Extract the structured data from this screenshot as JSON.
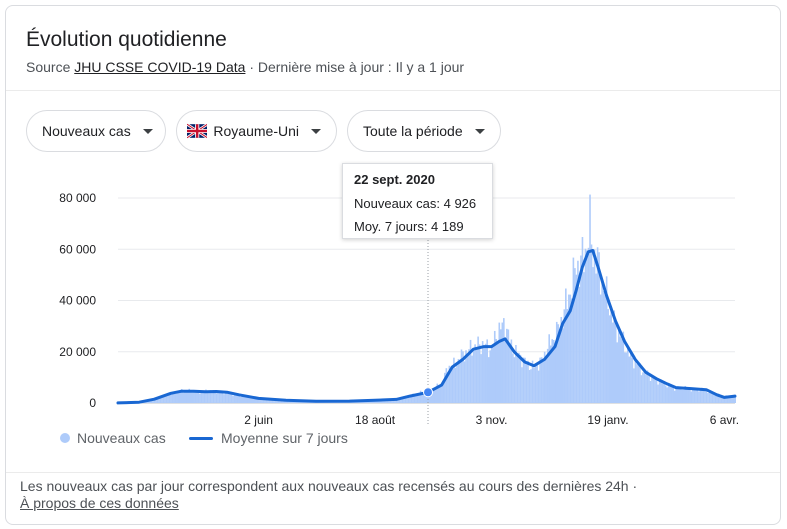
{
  "header": {
    "title": "Évolution quotidienne",
    "source_prefix": "Source",
    "source_link": "JHU CSSE COVID-19 Data",
    "updated": "· Dernière mise à jour : Il y a 1 jour"
  },
  "filters": {
    "metric": "Nouveaux cas",
    "country": "Royaume-Uni",
    "period": "Toute la période"
  },
  "tooltip": {
    "date": "22 sept. 2020",
    "new_cases": "Nouveaux cas: 4 926",
    "avg": "Moy. 7 jours: 4 189"
  },
  "legend": {
    "bars": "Nouveaux cas",
    "line": "Moyenne sur 7 jours"
  },
  "footer": {
    "note": "Les nouveaux cas par jour correspondent aux nouveaux cas recensés au cours des dernières 24h ·",
    "about": "À propos de ces données"
  },
  "colors": {
    "bars": "#aecbfa",
    "line": "#1967d2",
    "grid": "#e8eaed"
  },
  "chart_data": {
    "type": "bar",
    "ylim": [
      0,
      80000
    ],
    "y_ticks": [
      {
        "value": 0,
        "label": "0"
      },
      {
        "value": 20000,
        "label": "20 000"
      },
      {
        "value": 40000,
        "label": "40 000"
      },
      {
        "value": 60000,
        "label": "60 000"
      },
      {
        "value": 80000,
        "label": "80 000"
      }
    ],
    "x_range": [
      "2020-03-01",
      "2021-04-13"
    ],
    "x_ticks": [
      {
        "date": "2020-06-02",
        "label": "2 juin"
      },
      {
        "date": "2020-08-18",
        "label": "18 août"
      },
      {
        "date": "2020-11-03",
        "label": "3 nov."
      },
      {
        "date": "2021-01-19",
        "label": "19 janv."
      },
      {
        "date": "2021-04-06",
        "label": "6 avr."
      }
    ],
    "highlight": {
      "date": "2020-09-22",
      "new_cases": 4926,
      "avg_7d": 4189
    },
    "series": [
      {
        "name": "Nouveaux cas",
        "kind": "bars",
        "points": [
          [
            "2020-03-01",
            30
          ],
          [
            "2020-03-15",
            200
          ],
          [
            "2020-03-25",
            1500
          ],
          [
            "2020-04-05",
            3500
          ],
          [
            "2020-04-12",
            4800
          ],
          [
            "2020-04-25",
            4500
          ],
          [
            "2020-05-05",
            4600
          ],
          [
            "2020-05-20",
            3000
          ],
          [
            "2020-06-02",
            1700
          ],
          [
            "2020-06-20",
            1100
          ],
          [
            "2020-07-10",
            600
          ],
          [
            "2020-08-01",
            750
          ],
          [
            "2020-08-18",
            1050
          ],
          [
            "2020-09-01",
            1500
          ],
          [
            "2020-09-10",
            2800
          ],
          [
            "2020-09-22",
            4926
          ],
          [
            "2020-10-01",
            7000
          ],
          [
            "2020-10-05",
            14000
          ],
          [
            "2020-10-10",
            15000
          ],
          [
            "2020-10-15",
            19000
          ],
          [
            "2020-10-20",
            21000
          ],
          [
            "2020-10-27",
            23000
          ],
          [
            "2020-11-03",
            21000
          ],
          [
            "2020-11-07",
            28000
          ],
          [
            "2020-11-12",
            31000
          ],
          [
            "2020-11-16",
            22000
          ],
          [
            "2020-11-22",
            18000
          ],
          [
            "2020-11-27",
            15000
          ],
          [
            "2020-12-01",
            14000
          ],
          [
            "2020-12-07",
            17000
          ],
          [
            "2020-12-10",
            22000
          ],
          [
            "2020-12-15",
            26000
          ],
          [
            "2020-12-19",
            32000
          ],
          [
            "2020-12-22",
            38000
          ],
          [
            "2020-12-24",
            42000
          ],
          [
            "2020-12-27",
            48000
          ],
          [
            "2020-12-29",
            55000
          ],
          [
            "2020-12-31",
            52000
          ],
          [
            "2021-01-03",
            58000
          ],
          [
            "2021-01-05",
            62000
          ],
          [
            "2021-01-07",
            68000
          ],
          [
            "2021-01-09",
            59000
          ],
          [
            "2021-01-12",
            55000
          ],
          [
            "2021-01-16",
            45000
          ],
          [
            "2021-01-20",
            38000
          ],
          [
            "2021-01-24",
            30000
          ],
          [
            "2021-01-28",
            25000
          ],
          [
            "2021-02-03",
            18000
          ],
          [
            "2021-02-10",
            13000
          ],
          [
            "2021-02-17",
            10000
          ],
          [
            "2021-02-24",
            8000
          ],
          [
            "2021-03-03",
            6000
          ],
          [
            "2021-03-15",
            5500
          ],
          [
            "2021-03-25",
            4800
          ],
          [
            "2021-04-01",
            3200
          ],
          [
            "2021-04-06",
            2500
          ],
          [
            "2021-04-13",
            2800
          ]
        ]
      },
      {
        "name": "Moyenne sur 7 jours",
        "kind": "line",
        "points": [
          [
            "2020-03-01",
            30
          ],
          [
            "2020-03-15",
            300
          ],
          [
            "2020-03-25",
            1500
          ],
          [
            "2020-04-05",
            3800
          ],
          [
            "2020-04-12",
            4600
          ],
          [
            "2020-04-20",
            4600
          ],
          [
            "2020-04-28",
            4400
          ],
          [
            "2020-05-05",
            4500
          ],
          [
            "2020-05-12",
            4200
          ],
          [
            "2020-05-20",
            3200
          ],
          [
            "2020-06-02",
            1800
          ],
          [
            "2020-06-20",
            1100
          ],
          [
            "2020-07-10",
            650
          ],
          [
            "2020-08-01",
            750
          ],
          [
            "2020-08-18",
            1050
          ],
          [
            "2020-09-01",
            1400
          ],
          [
            "2020-09-10",
            2700
          ],
          [
            "2020-09-22",
            4189
          ],
          [
            "2020-10-01",
            7000
          ],
          [
            "2020-10-08",
            14000
          ],
          [
            "2020-10-15",
            17000
          ],
          [
            "2020-10-22",
            21000
          ],
          [
            "2020-10-29",
            22000
          ],
          [
            "2020-11-03",
            22000
          ],
          [
            "2020-11-08",
            24000
          ],
          [
            "2020-11-12",
            25000
          ],
          [
            "2020-11-18",
            20000
          ],
          [
            "2020-11-25",
            16000
          ],
          [
            "2020-12-01",
            14500
          ],
          [
            "2020-12-08",
            17000
          ],
          [
            "2020-12-15",
            22000
          ],
          [
            "2020-12-20",
            31000
          ],
          [
            "2020-12-25",
            36000
          ],
          [
            "2020-12-29",
            44000
          ],
          [
            "2021-01-02",
            53000
          ],
          [
            "2021-01-06",
            59000
          ],
          [
            "2021-01-09",
            59500
          ],
          [
            "2021-01-13",
            52000
          ],
          [
            "2021-01-18",
            42000
          ],
          [
            "2021-01-24",
            32000
          ],
          [
            "2021-01-30",
            24000
          ],
          [
            "2021-02-06",
            17000
          ],
          [
            "2021-02-13",
            12000
          ],
          [
            "2021-02-20",
            9500
          ],
          [
            "2021-02-27",
            7500
          ],
          [
            "2021-03-05",
            6000
          ],
          [
            "2021-03-15",
            5600
          ],
          [
            "2021-03-25",
            5200
          ],
          [
            "2021-04-01",
            3200
          ],
          [
            "2021-04-06",
            2200
          ],
          [
            "2021-04-13",
            2700
          ]
        ]
      }
    ]
  }
}
